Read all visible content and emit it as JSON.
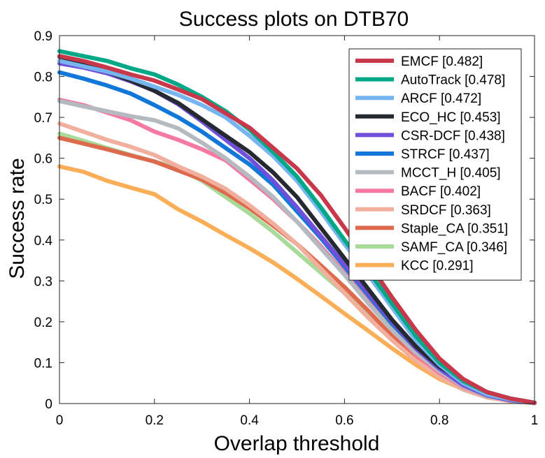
{
  "chart_data": {
    "type": "line",
    "title": "Success plots on DTB70",
    "xlabel": "Overlap threshold",
    "ylabel": "Success rate",
    "xlim": [
      0,
      1
    ],
    "ylim": [
      0,
      0.9
    ],
    "xticks": [
      "0",
      "0.2",
      "0.4",
      "0.6",
      "0.8",
      "1"
    ],
    "yticks": [
      "0",
      "0.1",
      "0.2",
      "0.3",
      "0.4",
      "0.5",
      "0.6",
      "0.7",
      "0.8",
      "0.9"
    ],
    "grid": false,
    "legend_position": "top-right",
    "x": [
      0,
      0.05,
      0.1,
      0.15,
      0.2,
      0.25,
      0.3,
      0.35,
      0.4,
      0.45,
      0.5,
      0.55,
      0.6,
      0.65,
      0.7,
      0.75,
      0.8,
      0.85,
      0.9,
      0.95,
      1.0
    ],
    "series": [
      {
        "name": "EMCF [0.482]",
        "color": "#C8374A",
        "values": [
          0.85,
          0.838,
          0.822,
          0.805,
          0.79,
          0.768,
          0.745,
          0.71,
          0.675,
          0.625,
          0.575,
          0.51,
          0.43,
          0.345,
          0.26,
          0.18,
          0.11,
          0.06,
          0.028,
          0.012,
          0.002
        ]
      },
      {
        "name": "AutoTrack [0.478]",
        "color": "#00A886",
        "values": [
          0.862,
          0.85,
          0.838,
          0.82,
          0.805,
          0.78,
          0.75,
          0.715,
          0.67,
          0.615,
          0.555,
          0.48,
          0.4,
          0.325,
          0.245,
          0.165,
          0.1,
          0.055,
          0.028,
          0.012,
          0.002
        ]
      },
      {
        "name": "ARCF [0.472]",
        "color": "#76B5F0",
        "values": [
          0.838,
          0.825,
          0.812,
          0.795,
          0.775,
          0.755,
          0.73,
          0.7,
          0.655,
          0.605,
          0.545,
          0.47,
          0.39,
          0.315,
          0.235,
          0.155,
          0.095,
          0.05,
          0.022,
          0.01,
          0.002
        ]
      },
      {
        "name": "ECO_HC [0.453]",
        "color": "#252A30",
        "values": [
          0.848,
          0.83,
          0.812,
          0.79,
          0.765,
          0.735,
          0.695,
          0.655,
          0.615,
          0.565,
          0.505,
          0.43,
          0.355,
          0.28,
          0.205,
          0.14,
          0.09,
          0.055,
          0.028,
          0.012,
          0.002
        ]
      },
      {
        "name": "CSR-DCF [0.438]",
        "color": "#7050DA",
        "values": [
          0.832,
          0.822,
          0.808,
          0.788,
          0.765,
          0.732,
          0.69,
          0.645,
          0.6,
          0.545,
          0.48,
          0.41,
          0.34,
          0.27,
          0.2,
          0.135,
          0.085,
          0.045,
          0.02,
          0.008,
          0.002
        ]
      },
      {
        "name": "STRCF [0.437]",
        "color": "#1177D8",
        "values": [
          0.81,
          0.795,
          0.778,
          0.758,
          0.73,
          0.7,
          0.665,
          0.625,
          0.585,
          0.535,
          0.47,
          0.405,
          0.335,
          0.265,
          0.195,
          0.135,
          0.085,
          0.045,
          0.02,
          0.008,
          0.002
        ]
      },
      {
        "name": "MCCT_H [0.405]",
        "color": "#B3BBC0",
        "values": [
          0.74,
          0.727,
          0.715,
          0.703,
          0.693,
          0.673,
          0.638,
          0.6,
          0.555,
          0.505,
          0.445,
          0.38,
          0.315,
          0.245,
          0.18,
          0.125,
          0.08,
          0.042,
          0.018,
          0.008,
          0.002
        ]
      },
      {
        "name": "BACF [0.402]",
        "color": "#F57AA3",
        "values": [
          0.743,
          0.73,
          0.712,
          0.693,
          0.665,
          0.645,
          0.622,
          0.595,
          0.548,
          0.5,
          0.445,
          0.385,
          0.32,
          0.25,
          0.18,
          0.12,
          0.075,
          0.04,
          0.018,
          0.008,
          0.002
        ]
      },
      {
        "name": "SRDCF [0.363]",
        "color": "#F1B09E",
        "values": [
          0.685,
          0.665,
          0.645,
          0.628,
          0.608,
          0.58,
          0.555,
          0.525,
          0.485,
          0.44,
          0.39,
          0.33,
          0.27,
          0.21,
          0.155,
          0.105,
          0.065,
          0.035,
          0.015,
          0.006,
          0.001
        ]
      },
      {
        "name": "Staple_CA [0.351]",
        "color": "#DE6A4E",
        "values": [
          0.65,
          0.636,
          0.622,
          0.607,
          0.592,
          0.57,
          0.548,
          0.515,
          0.478,
          0.435,
          0.39,
          0.338,
          0.285,
          0.227,
          0.165,
          0.11,
          0.068,
          0.036,
          0.016,
          0.006,
          0.001
        ]
      },
      {
        "name": "SAMF_CA [0.346]",
        "color": "#A8DA9A",
        "values": [
          0.66,
          0.643,
          0.625,
          0.608,
          0.592,
          0.575,
          0.545,
          0.505,
          0.465,
          0.42,
          0.37,
          0.32,
          0.27,
          0.218,
          0.162,
          0.108,
          0.065,
          0.034,
          0.015,
          0.006,
          0.001
        ]
      },
      {
        "name": "KCC [0.291]",
        "color": "#FAAE58",
        "values": [
          0.58,
          0.567,
          0.545,
          0.528,
          0.512,
          0.475,
          0.445,
          0.412,
          0.38,
          0.345,
          0.305,
          0.263,
          0.22,
          0.178,
          0.135,
          0.095,
          0.06,
          0.035,
          0.018,
          0.008,
          0.001
        ]
      }
    ]
  }
}
